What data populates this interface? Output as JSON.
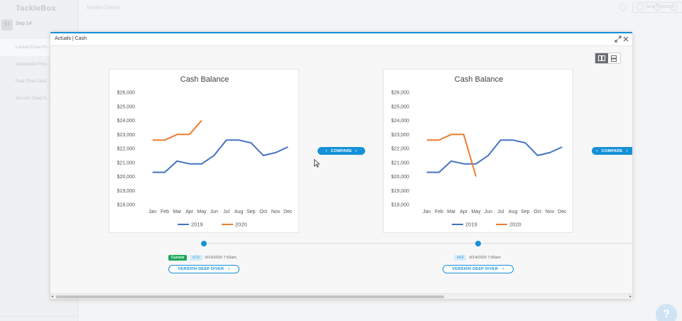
{
  "background": {
    "logo_text": "TackleBox",
    "date_chip": "S1",
    "date_label": "Sep 14",
    "header_title": "Insiten Demo",
    "feedback_label": "Send Feedback",
    "menu_items": [
      {
        "label": "Limited Excel Fo..."
      },
      {
        "label": "Automated Prov..."
      },
      {
        "label": "Real-Time Dash..."
      },
      {
        "label": "Session Deep D..."
      }
    ],
    "help_label": "?"
  },
  "modal": {
    "title": "Actuals | Cash",
    "expand_icon": "expand-icon",
    "close_icon": "close-icon",
    "view_toggle": {
      "options": [
        "side-by-side-icon",
        "stacked-icon"
      ],
      "active": 0
    }
  },
  "compare": {
    "label": "COMPARE"
  },
  "versions": [
    {
      "badge_current": "Current",
      "badge_version": "v7.0",
      "timestamp": "9/14/2020 7:53am",
      "deep_diver_label": "VERSION DEEP DIVER"
    },
    {
      "badge_version": "v4.0",
      "timestamp": "9/14/2020 7:05am",
      "deep_diver_label": "VERSION DEEP DIVER"
    }
  ],
  "colors": {
    "accent": "#1591d8",
    "series_2019": "#4472c4",
    "series_2020": "#ed7d31",
    "current_badge": "#1aa85a"
  },
  "chart_data": [
    {
      "type": "line",
      "title": "Cash Balance",
      "categories": [
        "Jan",
        "Feb",
        "Mar",
        "Apr",
        "May",
        "Jun",
        "Jul",
        "Aug",
        "Sep",
        "Oct",
        "Nov",
        "Dec"
      ],
      "ylim": [
        18000,
        26000
      ],
      "yticks": [
        "$18,000",
        "$19,000",
        "$20,000",
        "$21,000",
        "$22,000",
        "$23,000",
        "$24,000",
        "$25,000",
        "$26,000"
      ],
      "legend_position": "bottom",
      "grid": false,
      "series": [
        {
          "name": "2019",
          "values": [
            20300,
            20300,
            21100,
            20900,
            20900,
            21500,
            22600,
            22600,
            22400,
            21500,
            21700,
            22100
          ]
        },
        {
          "name": "2020",
          "values": [
            22600,
            22600,
            23000,
            23000,
            24000,
            null,
            null,
            null,
            null,
            null,
            null,
            null
          ]
        }
      ]
    },
    {
      "type": "line",
      "title": "Cash Balance",
      "categories": [
        "Jan",
        "Feb",
        "Mar",
        "Apr",
        "May",
        "Jun",
        "Jul",
        "Aug",
        "Sep",
        "Oct",
        "Nov",
        "Dec"
      ],
      "ylim": [
        18000,
        26000
      ],
      "yticks": [
        "$18,000",
        "$19,000",
        "$20,000",
        "$21,000",
        "$22,000",
        "$23,000",
        "$24,000",
        "$25,000",
        "$26,000"
      ],
      "legend_position": "bottom",
      "grid": false,
      "series": [
        {
          "name": "2019",
          "values": [
            20300,
            20300,
            21100,
            20900,
            20900,
            21500,
            22600,
            22600,
            22400,
            21500,
            21700,
            22100
          ]
        },
        {
          "name": "2020",
          "values": [
            22600,
            22600,
            23000,
            23000,
            20000,
            null,
            null,
            null,
            null,
            null,
            null,
            null
          ]
        }
      ]
    }
  ]
}
